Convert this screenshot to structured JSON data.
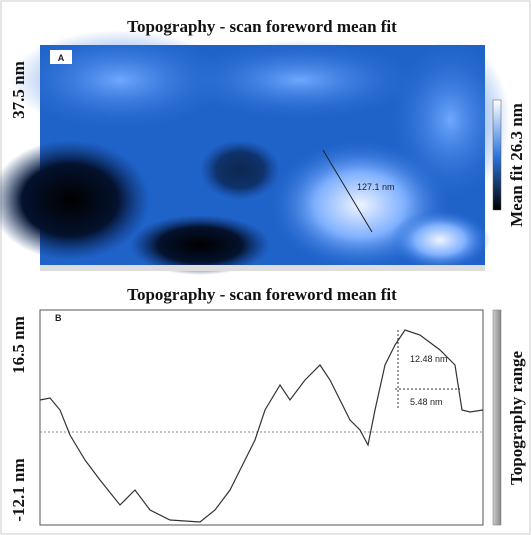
{
  "panel_a": {
    "title": "Topography - scan foreword mean fit",
    "letter": "A",
    "left_label": "37.5 nm",
    "right_label": "Mean fit 26.3 nm",
    "measurement": "127.1 nm"
  },
  "panel_b": {
    "title": "Topography - scan foreword mean fit",
    "letter": "B",
    "upper_label": "16.5 nm",
    "lower_label": "-12.1 nm",
    "height_annotation": "12.48 nm",
    "width_annotation": "5.48 nm",
    "right_label": "Topography range"
  }
}
